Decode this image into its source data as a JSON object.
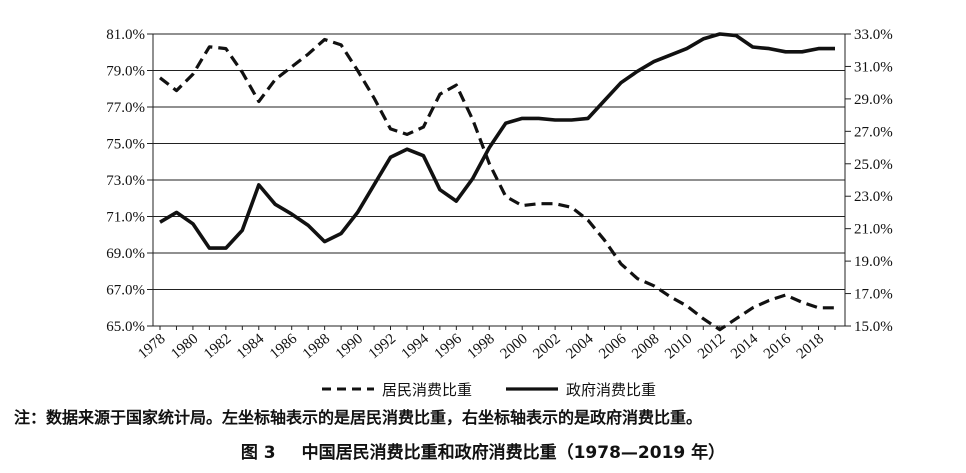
{
  "chart_data": {
    "type": "line",
    "x": [
      1978,
      1979,
      1980,
      1981,
      1982,
      1983,
      1984,
      1985,
      1986,
      1987,
      1988,
      1989,
      1990,
      1991,
      1992,
      1993,
      1994,
      1995,
      1996,
      1997,
      1998,
      1999,
      2000,
      2001,
      2002,
      2003,
      2004,
      2005,
      2006,
      2007,
      2008,
      2009,
      2010,
      2011,
      2012,
      2013,
      2014,
      2015,
      2016,
      2017,
      2018,
      2019
    ],
    "x_tick_labels": [
      "1978",
      "1980",
      "1982",
      "1984",
      "1986",
      "1988",
      "1990",
      "1992",
      "1994",
      "1996",
      "1998",
      "2000",
      "2002",
      "2004",
      "2006",
      "2008",
      "2010",
      "2012",
      "2014",
      "2016",
      "2018"
    ],
    "y_left_range": [
      65.0,
      81.0
    ],
    "y_left_ticks": [
      "65.0%",
      "67.0%",
      "69.0%",
      "71.0%",
      "73.0%",
      "75.0%",
      "77.0%",
      "79.0%",
      "81.0%"
    ],
    "y_right_range": [
      15.0,
      33.0
    ],
    "y_right_ticks": [
      "15.0%",
      "17.0%",
      "19.0%",
      "21.0%",
      "23.0%",
      "25.0%",
      "27.0%",
      "29.0%",
      "31.0%",
      "33.0%"
    ],
    "grid": "horizontal",
    "legend_position": "bottom",
    "series": [
      {
        "name": "居民消费比重",
        "axis": "left",
        "style": "dashed",
        "color": "#111111",
        "values": [
          78.6,
          77.9,
          78.8,
          80.3,
          80.2,
          78.9,
          77.3,
          78.5,
          79.2,
          79.9,
          80.7,
          80.4,
          79.0,
          77.5,
          75.8,
          75.5,
          75.9,
          77.7,
          78.2,
          76.3,
          73.9,
          72.1,
          71.6,
          71.7,
          71.7,
          71.5,
          70.8,
          69.7,
          68.4,
          67.6,
          67.2,
          66.6,
          66.1,
          65.4,
          64.8,
          65.4,
          66.0,
          66.4,
          66.7,
          66.3,
          66.0,
          66.0
        ]
      },
      {
        "name": "政府消费比重",
        "axis": "right",
        "style": "solid",
        "color": "#111111",
        "values": [
          21.4,
          22.0,
          21.3,
          19.8,
          19.8,
          20.9,
          23.7,
          22.5,
          21.9,
          21.2,
          20.2,
          20.7,
          22.0,
          23.7,
          25.4,
          25.9,
          25.5,
          23.4,
          22.7,
          24.1,
          26.0,
          27.5,
          27.8,
          27.8,
          27.7,
          27.7,
          27.8,
          28.9,
          30.0,
          30.7,
          31.3,
          31.7,
          32.1,
          32.7,
          33.0,
          32.9,
          32.2,
          32.1,
          31.9,
          31.9,
          32.1,
          32.1
        ]
      }
    ]
  },
  "legend": {
    "items": [
      {
        "label": "居民消费比重",
        "style": "dashed"
      },
      {
        "label": "政府消费比重",
        "style": "solid"
      }
    ]
  },
  "note": "注：数据来源于国家统计局。左坐标轴表示的是居民消费比重，右坐标轴表示的是政府消费比重。",
  "caption": {
    "number": "图 3",
    "title": "中国居民消费比重和政府消费比重（1978—2019 年）"
  }
}
